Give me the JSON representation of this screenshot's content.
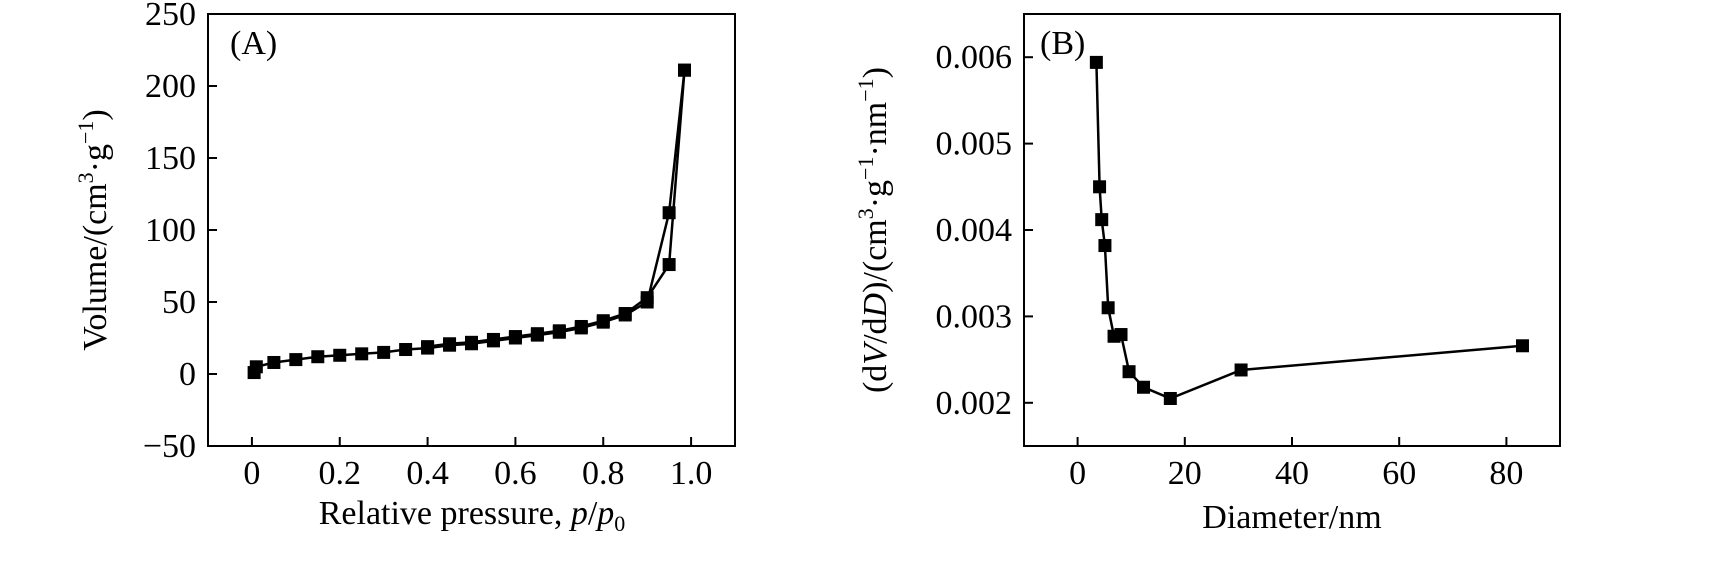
{
  "chart_data": [
    {
      "type": "line",
      "panel_label": "(A)",
      "xlabel_main": "Relative pressure, ",
      "xlabel_var": "p",
      "xlabel_slash": "/",
      "xlabel_var2": "p",
      "xlabel_sub": "0",
      "ylabel_main": "Volume/(cm",
      "ylabel_sup1": "3",
      "ylabel_mid": "·g",
      "ylabel_sup2": "−1",
      "ylabel_end": ")",
      "xlim": [
        -0.1,
        1.1
      ],
      "ylim": [
        -50,
        250
      ],
      "xticks": [
        0,
        0.2,
        0.4,
        0.6,
        0.8,
        1.0
      ],
      "xtick_labels": [
        "0",
        "0.2",
        "0.4",
        "0.6",
        "0.8",
        "1.0"
      ],
      "yticks": [
        -50,
        0,
        50,
        100,
        150,
        200,
        250
      ],
      "ytick_labels": [
        "−50",
        "0",
        "50",
        "100",
        "150",
        "200",
        "250"
      ],
      "color": "#000000",
      "marker": "square",
      "series": [
        {
          "x": [
            0.005,
            0.01,
            0.05,
            0.1,
            0.15,
            0.2,
            0.25,
            0.3,
            0.35,
            0.4,
            0.45,
            0.5,
            0.55,
            0.6,
            0.65,
            0.7,
            0.75,
            0.8,
            0.85,
            0.9,
            0.95,
            0.985
          ],
          "y": [
            1,
            5,
            8,
            10,
            12,
            13,
            14,
            15,
            17,
            18,
            20,
            21,
            23,
            25,
            27,
            29,
            32,
            36,
            41,
            50,
            112,
            211
          ]
        },
        {
          "x": [
            0.985,
            0.95,
            0.9,
            0.85,
            0.8,
            0.75,
            0.7,
            0.65,
            0.6,
            0.55,
            0.5,
            0.45,
            0.4
          ],
          "y": [
            211,
            76,
            53,
            42,
            37,
            33,
            30,
            28,
            26,
            24,
            22,
            21,
            19
          ]
        }
      ]
    },
    {
      "type": "line",
      "panel_label": "(B)",
      "xlabel": "Diameter/nm",
      "ylabel_main": "(d",
      "ylabel_var1": "V",
      "ylabel_mid1": "/d",
      "ylabel_var2": "D",
      "ylabel_mid2": ")/(cm",
      "ylabel_sup1": "3",
      "ylabel_mid3": "·g",
      "ylabel_sup2": "−1",
      "ylabel_mid4": "·nm",
      "ylabel_sup3": "−1",
      "ylabel_end": ")",
      "xlim": [
        -10,
        90
      ],
      "ylim": [
        0.0015,
        0.0065
      ],
      "xticks": [
        0,
        20,
        40,
        60,
        80
      ],
      "xtick_labels": [
        "0",
        "20",
        "40",
        "60",
        "80"
      ],
      "yticks": [
        0.002,
        0.003,
        0.004,
        0.005,
        0.006
      ],
      "ytick_labels": [
        "0.002",
        "0.003",
        "0.004",
        "0.005",
        "0.006"
      ],
      "color": "#000000",
      "marker": "square",
      "series": [
        {
          "x": [
            3.5,
            4.1,
            4.5,
            5.1,
            5.7,
            6.8,
            8.1,
            9.6,
            12.3,
            17.3,
            30.5,
            83
          ],
          "y": [
            0.00594,
            0.0045,
            0.00412,
            0.00382,
            0.0031,
            0.00277,
            0.00279,
            0.00236,
            0.00218,
            0.00205,
            0.00238,
            0.00266
          ]
        }
      ]
    }
  ]
}
